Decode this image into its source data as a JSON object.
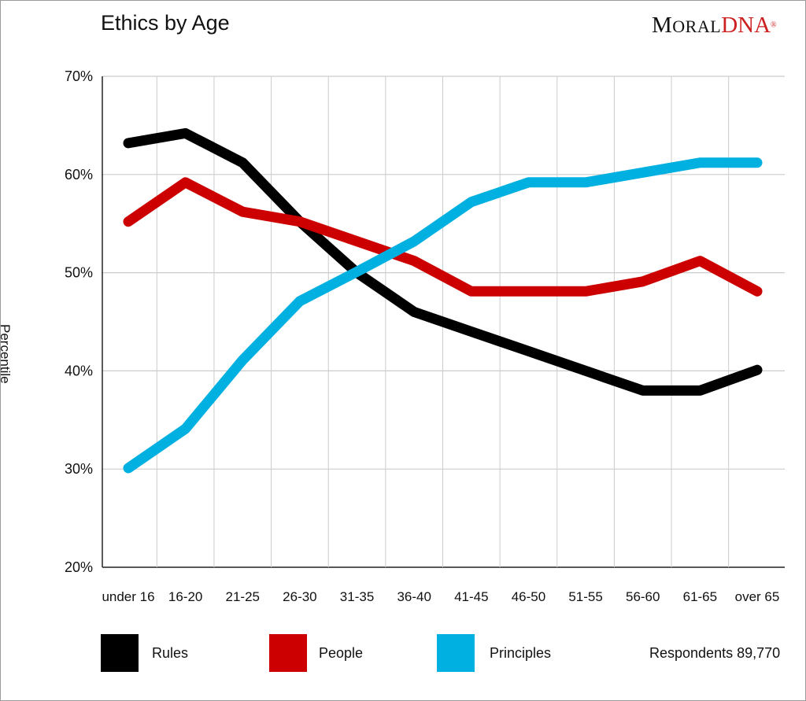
{
  "page": {
    "title": "Ethics by Age",
    "logo": {
      "moral_first": "M",
      "moral_rest": "ORAL",
      "dna": "DNA",
      "reg": "®"
    },
    "respondents": "Respondents 89,770"
  },
  "colors": {
    "Rules": "#000000",
    "People": "#cc0000",
    "Principles": "#00b0e0",
    "grid": "#cccccc"
  },
  "chart_data": {
    "type": "line",
    "title": "Ethics by Age",
    "xlabel": "",
    "ylabel": "Percentile",
    "ylim": [
      20,
      70
    ],
    "yticks": [
      "20%",
      "30%",
      "40%",
      "50%",
      "60%",
      "70%"
    ],
    "ytick_values": [
      20,
      30,
      40,
      50,
      60,
      70
    ],
    "categories": [
      "under 16",
      "16-20",
      "21-25",
      "26-30",
      "31-35",
      "36-40",
      "41-45",
      "46-50",
      "51-55",
      "56-60",
      "61-65",
      "over 65"
    ],
    "grid": true,
    "legend": "bottom",
    "series": [
      {
        "name": "Rules",
        "values": [
          63.2,
          64.2,
          61.2,
          55.2,
          50.0,
          46.0,
          44.0,
          42.0,
          40.0,
          38.0,
          38.0,
          40.1
        ]
      },
      {
        "name": "People",
        "values": [
          55.2,
          59.2,
          56.2,
          55.2,
          53.2,
          51.2,
          48.1,
          48.1,
          48.1,
          49.1,
          51.2,
          48.1
        ]
      },
      {
        "name": "Principles",
        "values": [
          30.1,
          34.1,
          41.1,
          47.1,
          50.1,
          53.2,
          57.2,
          59.2,
          59.2,
          60.2,
          61.2,
          61.2
        ]
      }
    ]
  }
}
